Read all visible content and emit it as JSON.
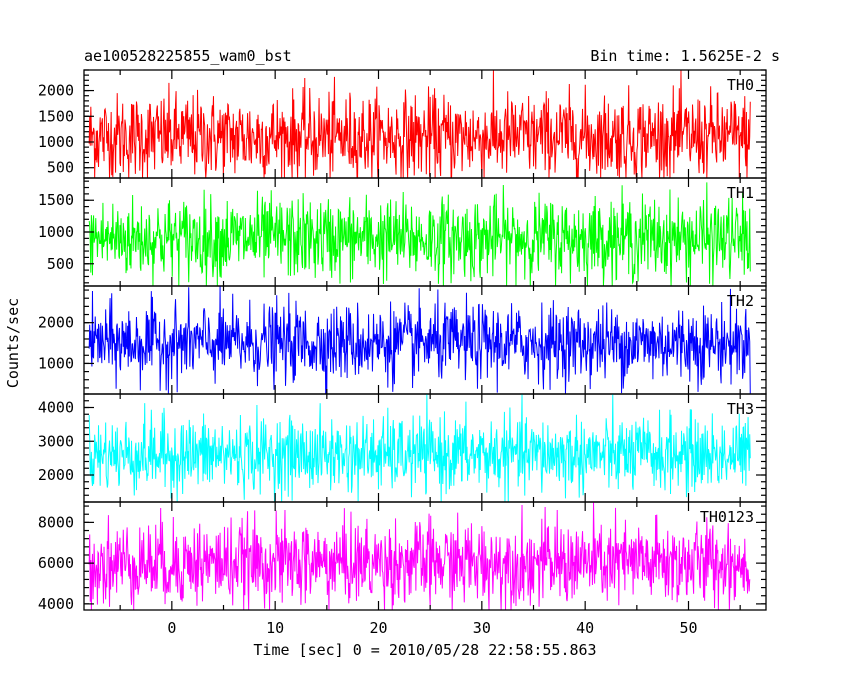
{
  "chart_data": {
    "type": "line",
    "title": "ae100528225855_wam0_bst",
    "bin_time_label": "Bin time: 1.5625E-2 s",
    "xlabel": "Time [sec] 0 = 2010/05/28 22:58:55.863",
    "ylabel": "Counts/sec",
    "xlim": [
      -8.5,
      57.5
    ],
    "x_data_range": [
      -8,
      56
    ],
    "xticks": [
      0,
      10,
      20,
      30,
      40,
      50
    ],
    "xtick_labels": [
      "0",
      "10",
      "20",
      "30",
      "40",
      "50"
    ],
    "panels": [
      {
        "name": "TH0",
        "color": "#ff0000",
        "ylim": [
          300,
          2400
        ],
        "yticks": [
          500,
          1000,
          1500,
          2000
        ],
        "ytick_labels": [
          "500",
          "1000",
          "1500",
          "2000"
        ],
        "mean": 1100,
        "noise_sd": 420,
        "min": 300,
        "max": 2400
      },
      {
        "name": "TH1",
        "color": "#00ff00",
        "ylim": [
          150,
          1850
        ],
        "yticks": [
          500,
          1000,
          1500
        ],
        "ytick_labels": [
          "500",
          "1000",
          "1500"
        ],
        "mean": 900,
        "noise_sd": 320,
        "min": 150,
        "max": 1850
      },
      {
        "name": "TH2",
        "color": "#0000ff",
        "ylim": [
          250,
          2900
        ],
        "yticks": [
          1000,
          2000
        ],
        "ytick_labels": [
          "1000",
          "2000"
        ],
        "mean": 1500,
        "noise_sd": 470,
        "min": 250,
        "max": 2900
      },
      {
        "name": "TH3",
        "color": "#00ffff",
        "ylim": [
          1200,
          4400
        ],
        "yticks": [
          2000,
          3000,
          4000
        ],
        "ytick_labels": [
          "2000",
          "3000",
          "4000"
        ],
        "mean": 2600,
        "noise_sd": 560,
        "min": 1200,
        "max": 4400
      },
      {
        "name": "TH0123",
        "color": "#ff00ff",
        "ylim": [
          3700,
          9000
        ],
        "yticks": [
          4000,
          6000,
          8000
        ],
        "ytick_labels": [
          "4000",
          "6000",
          "8000"
        ],
        "mean": 6000,
        "noise_sd": 1050,
        "min": 3700,
        "max": 9000
      }
    ]
  }
}
